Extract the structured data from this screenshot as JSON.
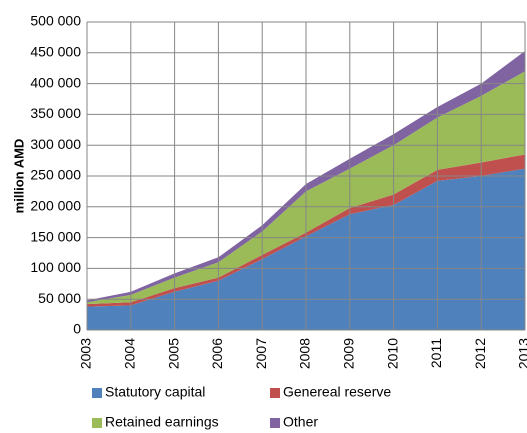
{
  "chart_data": {
    "type": "area",
    "stacked": true,
    "y_label": "million AMD",
    "categories": [
      "2003",
      "2004",
      "2005",
      "2006",
      "2007",
      "2008",
      "2009",
      "2010",
      "2011",
      "2012",
      "2013"
    ],
    "series": [
      {
        "name": "Statutory capital",
        "color": "#4f81bd",
        "values": [
          38000,
          40000,
          62000,
          80000,
          115000,
          152000,
          188000,
          203000,
          242000,
          250000,
          262000
        ]
      },
      {
        "name": "Genereal reserve",
        "color": "#c0504d",
        "values": [
          4000,
          5000,
          6000,
          5000,
          7000,
          6000,
          10000,
          17000,
          18000,
          22000,
          23000
        ]
      },
      {
        "name": "Retained earnings",
        "color": "#9bbb59",
        "values": [
          3000,
          12000,
          17000,
          25000,
          38000,
          67000,
          64000,
          80000,
          85000,
          108000,
          135000
        ]
      },
      {
        "name": "Other",
        "color": "#8064a2",
        "values": [
          3000,
          5000,
          7000,
          8000,
          10000,
          12000,
          16000,
          18000,
          17000,
          20000,
          33000
        ]
      }
    ],
    "ylim": [
      0,
      500000
    ],
    "yticks": [
      0,
      {
        "value": 50000,
        "label": "50 000"
      },
      {
        "value": 100000,
        "label": "100 000"
      },
      {
        "value": 150000,
        "label": "150 000"
      },
      {
        "value": 200000,
        "label": "200 000"
      },
      {
        "value": 250000,
        "label": "250 000"
      },
      {
        "value": 300000,
        "label": "300 000"
      },
      {
        "value": 350000,
        "label": "350 000"
      },
      {
        "value": 400000,
        "label": "400 000"
      },
      {
        "value": 450000,
        "label": "450 000"
      },
      {
        "value": 500000,
        "label": "500 000"
      }
    ],
    "grid": true
  }
}
